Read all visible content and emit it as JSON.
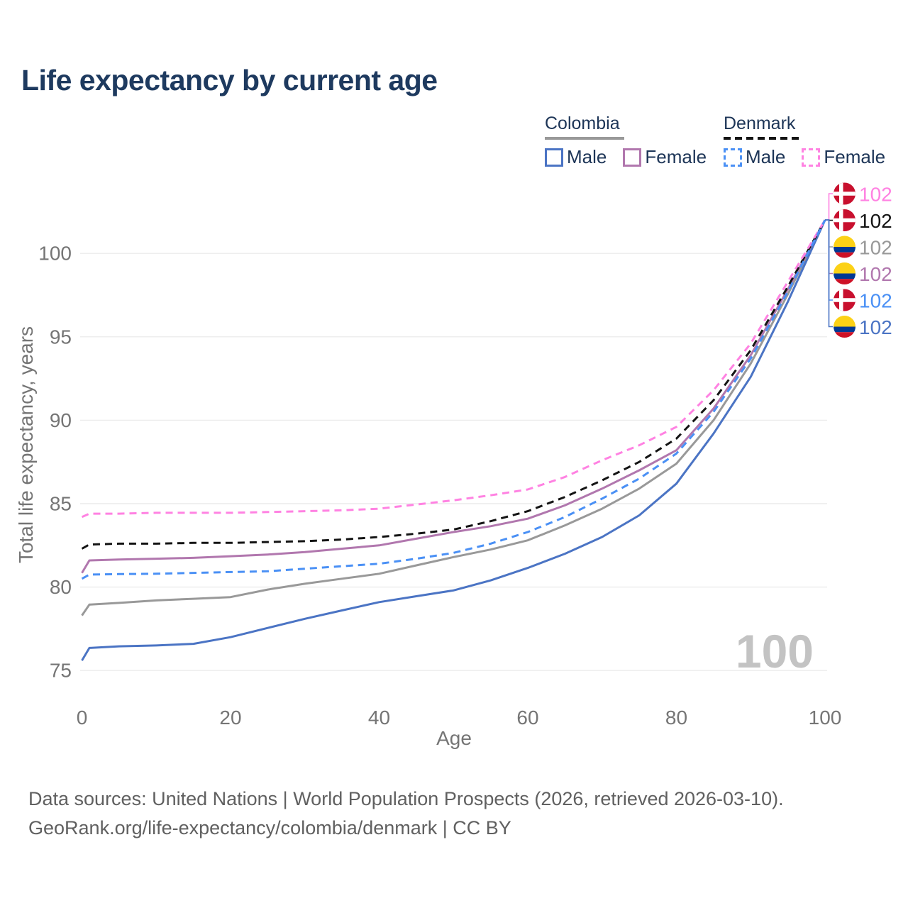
{
  "title": "Life expectancy by current age",
  "legend": {
    "groups": [
      {
        "label": "Colombia",
        "items": [
          {
            "label": "Male"
          },
          {
            "label": "Female"
          }
        ]
      },
      {
        "label": "Denmark",
        "items": [
          {
            "label": "Male"
          },
          {
            "label": "Female"
          }
        ]
      }
    ]
  },
  "footer": {
    "line1": "Data sources: United Nations | World Population Prospects (2026, retrieved 2026-03-10).",
    "line2": "GeoRank.org/life-expectancy/colombia/denmark | CC BY"
  },
  "chart_data": {
    "type": "line",
    "title": "Life expectancy by current age",
    "xlabel": "Age",
    "ylabel": "Total life expectancy, years",
    "xlim": [
      0,
      100
    ],
    "ylim": [
      75,
      102
    ],
    "x_ticks": [
      0,
      20,
      40,
      60,
      80,
      100
    ],
    "y_ticks": [
      75,
      80,
      85,
      90,
      95,
      100
    ],
    "grid": "horizontal",
    "watermark": "100",
    "axis_color": "#757575",
    "grid_color": "#ececec",
    "watermark_color": "#c3c3c3",
    "title_color": "#1e3a5f",
    "ages": [
      0,
      1,
      5,
      10,
      15,
      20,
      25,
      30,
      35,
      40,
      45,
      50,
      55,
      60,
      65,
      70,
      75,
      80,
      85,
      90,
      95,
      100
    ],
    "series": [
      {
        "id": "col_t",
        "name": "Colombia (both sexes)",
        "country": "colombia",
        "color": "#999999",
        "dash": false,
        "end_value": 102,
        "values": [
          78.3,
          78.95,
          79.05,
          79.2,
          79.3,
          79.4,
          79.85,
          80.2,
          80.5,
          80.8,
          81.3,
          81.8,
          82.25,
          82.8,
          83.7,
          84.7,
          85.9,
          87.4,
          90.0,
          93.4,
          97.55,
          102
        ]
      },
      {
        "id": "col_f",
        "name": "Colombia Female",
        "country": "colombia",
        "color": "#b177ae",
        "dash": false,
        "end_value": 102,
        "values": [
          80.85,
          81.6,
          81.65,
          81.7,
          81.75,
          81.85,
          81.95,
          82.1,
          82.3,
          82.5,
          82.9,
          83.3,
          83.65,
          84.1,
          84.9,
          85.9,
          87.0,
          88.2,
          90.7,
          93.9,
          97.85,
          102
        ]
      },
      {
        "id": "col_m",
        "name": "Colombia Male",
        "country": "colombia",
        "color": "#4b74c4",
        "dash": false,
        "end_value": 102,
        "values": [
          75.6,
          76.35,
          76.45,
          76.5,
          76.6,
          77.0,
          77.55,
          78.1,
          78.6,
          79.1,
          79.45,
          79.8,
          80.4,
          81.15,
          82.0,
          83.0,
          84.3,
          86.2,
          89.2,
          92.6,
          97.1,
          102
        ]
      },
      {
        "id": "den_t",
        "name": "Denmark (both sexes)",
        "country": "denmark",
        "color": "#141414",
        "dash": true,
        "end_value": 102,
        "values": [
          82.3,
          82.55,
          82.6,
          82.6,
          82.65,
          82.65,
          82.7,
          82.75,
          82.85,
          83.0,
          83.2,
          83.45,
          83.95,
          84.55,
          85.4,
          86.4,
          87.5,
          88.9,
          91.2,
          94.2,
          98.0,
          102
        ]
      },
      {
        "id": "den_f",
        "name": "Denmark Female",
        "country": "denmark",
        "color": "#ff82e2",
        "dash": true,
        "end_value": 102,
        "values": [
          84.2,
          84.4,
          84.4,
          84.45,
          84.45,
          84.45,
          84.5,
          84.55,
          84.6,
          84.7,
          84.95,
          85.2,
          85.5,
          85.85,
          86.6,
          87.6,
          88.5,
          89.6,
          91.8,
          94.6,
          98.3,
          102
        ]
      },
      {
        "id": "den_m",
        "name": "Denmark Male",
        "country": "denmark",
        "color": "#4a90f5",
        "dash": true,
        "end_value": 102,
        "values": [
          80.5,
          80.75,
          80.78,
          80.8,
          80.85,
          80.9,
          80.95,
          81.1,
          81.25,
          81.4,
          81.7,
          82.05,
          82.6,
          83.3,
          84.2,
          85.3,
          86.5,
          88.0,
          90.5,
          93.7,
          97.7,
          102
        ]
      }
    ],
    "end_labels": [
      {
        "series": "den_f",
        "flag": "denmark",
        "value": "102"
      },
      {
        "series": "den_t",
        "flag": "denmark",
        "value": "102"
      },
      {
        "series": "col_t",
        "flag": "colombia",
        "value": "102"
      },
      {
        "series": "col_f",
        "flag": "colombia",
        "value": "102"
      },
      {
        "series": "den_m",
        "flag": "denmark",
        "value": "102"
      },
      {
        "series": "col_m",
        "flag": "colombia",
        "value": "102"
      }
    ],
    "flag_colors": {
      "denmark": {
        "base": "#C8102E",
        "cross": "#FFFFFF"
      },
      "colombia": {
        "top": "#FCD116",
        "mid": "#003893",
        "bottom": "#CE1126"
      }
    }
  }
}
